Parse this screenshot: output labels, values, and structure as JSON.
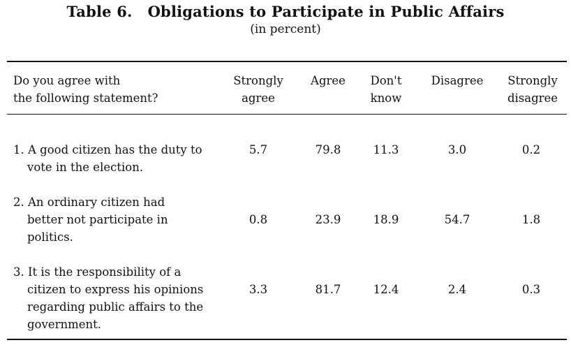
{
  "table": {
    "title_label": "Table 6.",
    "title_text": "Obligations to Participate in Public Affairs",
    "subtitle": "(in percent)",
    "header": {
      "question": [
        "Do you agree with",
        "the following statement?"
      ],
      "columns": [
        [
          "Strongly",
          "agree"
        ],
        [
          "Agree"
        ],
        [
          "Don't",
          "know"
        ],
        [
          "Disagree"
        ],
        [
          "Strongly",
          "disagree"
        ]
      ]
    },
    "rows": [
      {
        "lines": [
          "1. A good citizen has the duty to",
          "vote in the election."
        ],
        "values": [
          "5.7",
          "79.8",
          "11.3",
          "3.0",
          "0.2"
        ]
      },
      {
        "lines": [
          "2. An ordinary citizen had",
          "better not participate in",
          "politics."
        ],
        "values": [
          "0.8",
          "23.9",
          "18.9",
          "54.7",
          "1.8"
        ]
      },
      {
        "lines": [
          "3. It is the responsibility of a",
          "citizen to express his opinions",
          "regarding public affairs to the",
          "government."
        ],
        "values": [
          "3.3",
          "81.7",
          "12.4",
          "2.4",
          "0.3"
        ]
      }
    ]
  }
}
